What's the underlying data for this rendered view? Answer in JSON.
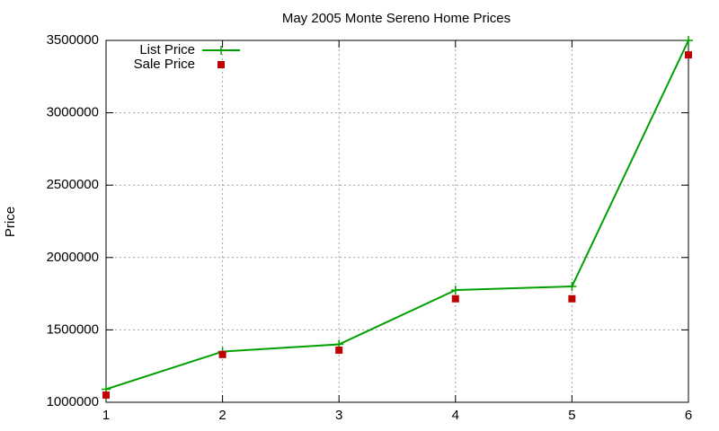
{
  "chart_data": {
    "type": "line",
    "title": "May 2005 Monte Sereno Home Prices",
    "y_label": "Price",
    "x": [
      1,
      2,
      3,
      4,
      5,
      6
    ],
    "series": [
      {
        "name": "List Price",
        "color": "#00a000",
        "style": "linespoints",
        "values": [
          1090000,
          1350000,
          1400000,
          1775000,
          1800000,
          3500000
        ]
      },
      {
        "name": "Sale Price",
        "color": "#c00000",
        "style": "points",
        "values": [
          1050000,
          1330000,
          1360000,
          1715000,
          1715000,
          3400000
        ]
      }
    ],
    "xlim": [
      1,
      6
    ],
    "xticks": [
      1,
      2,
      3,
      4,
      5,
      6
    ],
    "ylim": [
      1000000,
      3500000
    ],
    "yticks": [
      1000000,
      1500000,
      2000000,
      2500000,
      3000000,
      3500000
    ],
    "grid": true,
    "legend": "top-left"
  }
}
